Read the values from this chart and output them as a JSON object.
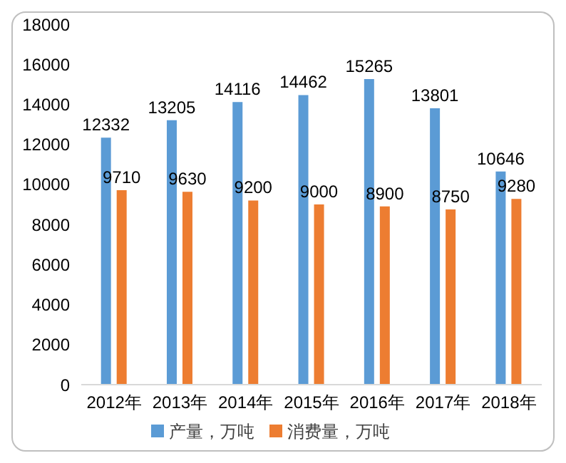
{
  "chart_data": {
    "type": "bar",
    "categories": [
      "2012年",
      "2013年",
      "2014年",
      "2015年",
      "2016年",
      "2017年",
      "2018年"
    ],
    "series": [
      {
        "name": "产量，万吨",
        "color": "#5b9bd5",
        "values": [
          12332,
          13205,
          14116,
          14462,
          15265,
          13801,
          10646
        ]
      },
      {
        "name": "消费量，万吨",
        "color": "#ed7d31",
        "values": [
          9710,
          9630,
          9200,
          9000,
          8900,
          8750,
          9280
        ]
      }
    ],
    "ylim": [
      0,
      18000
    ],
    "yticks": [
      0,
      2000,
      4000,
      6000,
      8000,
      10000,
      12000,
      14000,
      16000,
      18000
    ],
    "grid": false,
    "legend": "bottom",
    "data_labels": true
  }
}
